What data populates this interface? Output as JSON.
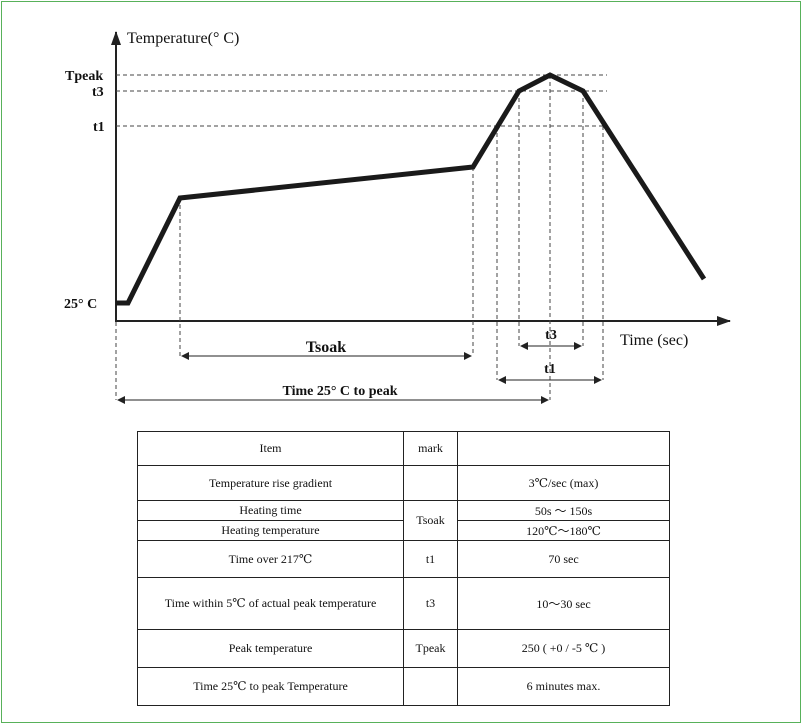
{
  "diagram": {
    "y_axis_label": "Temperature(° C)",
    "x_axis_label": "Time (sec)",
    "y_levels": {
      "tpeak": "Tpeak",
      "t3": "t3",
      "t1": "t1",
      "start": "25° C"
    },
    "spans": {
      "tsoak": "Tsoak",
      "to_peak": "Time 25° C to peak",
      "t3": "t3",
      "t1": "t1"
    },
    "line_color": "#1a1a1a",
    "frame_color": "#58b15a"
  },
  "table": {
    "header": {
      "item": "Item",
      "mark": "mark",
      "value": ""
    },
    "rows": [
      {
        "item": "Temperature rise gradient",
        "mark": "",
        "value": "3℃/sec (max)"
      },
      {
        "item": "Heating time",
        "mark": "Tsoak",
        "value": "50s ～ 150s"
      },
      {
        "item": "Heating temperature",
        "mark": "",
        "value": "120℃～180℃"
      },
      {
        "item": "Time over 217℃",
        "mark": "t1",
        "value": "70 sec"
      },
      {
        "item": "Time within 5℃ of actual peak temperature",
        "mark": "t3",
        "value": "10～30 sec"
      },
      {
        "item": "Peak temperature",
        "mark": "Tpeak",
        "value": "250 ( +0 / -5 ℃ )"
      },
      {
        "item": "Time 25℃ to peak Temperature",
        "mark": "",
        "value": "6 minutes max."
      }
    ]
  }
}
